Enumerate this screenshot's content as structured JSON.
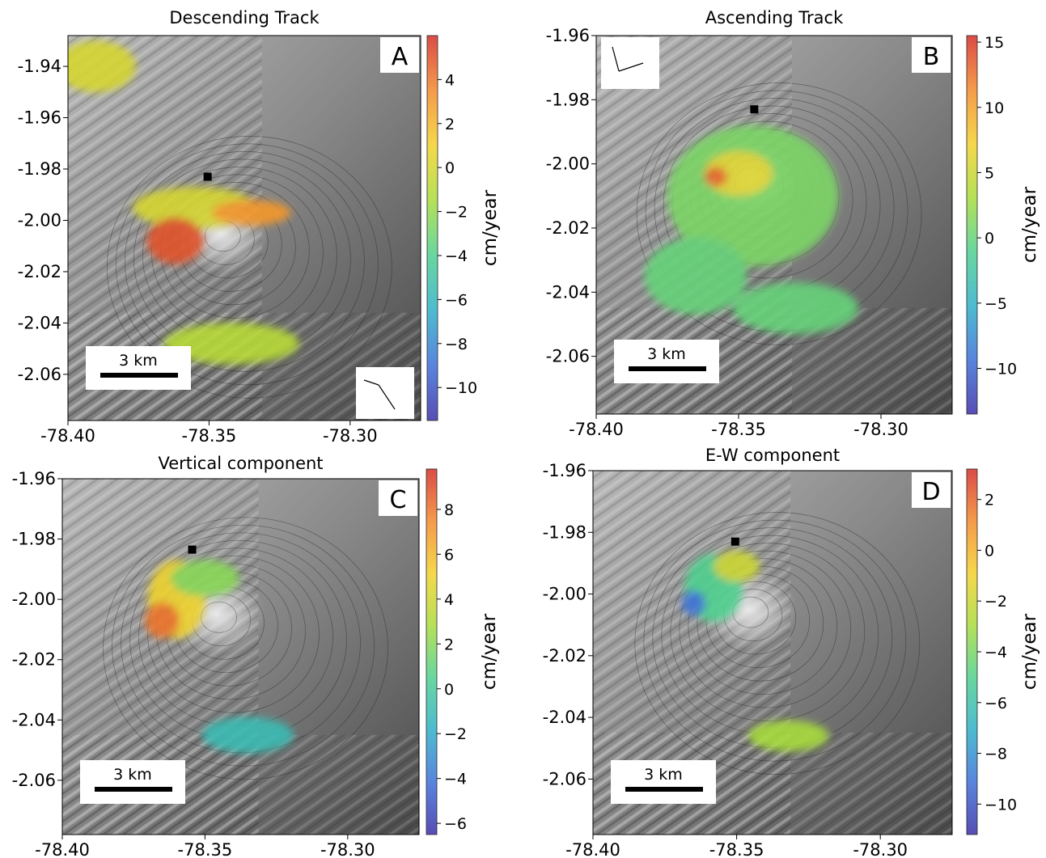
{
  "colorbar_unit": "cm/year",
  "scalebar_label": "3 km",
  "colormap": [
    "#3b2fa8",
    "#3d6fd8",
    "#2fb0c8",
    "#4fd090",
    "#a8dc3c",
    "#f4d22c",
    "#f48a2c",
    "#d42e28"
  ],
  "chart_data": [
    {
      "type": "heatmap",
      "panel_letter": "A",
      "title": "Descending Track",
      "xlim": [
        -78.4,
        -78.275
      ],
      "ylim": [
        -2.078,
        -1.928
      ],
      "xticks": [
        -78.4,
        -78.35,
        -78.3
      ],
      "xtick_labels": [
        "-78.40",
        "-78.35",
        "-78.30"
      ],
      "yticks": [
        -1.94,
        -1.96,
        -1.98,
        -2.0,
        -2.02,
        -2.04,
        -2.06
      ],
      "ytick_labels": [
        "-1.94",
        "-1.96",
        "-1.98",
        "-2.00",
        "-2.02",
        "-2.04",
        "-2.06"
      ],
      "colorbar": {
        "range": [
          -11.5,
          6
        ],
        "ticks": [
          4,
          2,
          0,
          -2,
          -4,
          -6,
          -8,
          -10
        ],
        "tick_labels": [
          "4",
          "2",
          "0",
          "−2",
          "−4",
          "−6",
          "−8",
          "−10"
        ],
        "label": "cm/year"
      },
      "marker": {
        "lon": -78.3505,
        "lat": -1.983
      },
      "arrows": "bottom-right",
      "deformation_patches": [
        {
          "lon": -78.355,
          "lat": -1.995,
          "rlon": 0.022,
          "rlat": 0.008,
          "value": 0
        },
        {
          "lon": -78.362,
          "lat": -2.008,
          "rlon": 0.01,
          "rlat": 0.009,
          "value": 5
        },
        {
          "lon": -78.335,
          "lat": -1.997,
          "rlon": 0.014,
          "rlat": 0.005,
          "value": 3
        },
        {
          "lon": -78.342,
          "lat": -2.048,
          "rlon": 0.024,
          "rlat": 0.008,
          "value": -1
        },
        {
          "lon": -78.39,
          "lat": -1.94,
          "rlon": 0.014,
          "rlat": 0.01,
          "value": 0
        }
      ]
    },
    {
      "type": "heatmap",
      "panel_letter": "B",
      "title": "Ascending Track",
      "xlim": [
        -78.4,
        -78.275
      ],
      "ylim": [
        -2.078,
        -1.96
      ],
      "xticks": [
        -78.4,
        -78.35,
        -78.3
      ],
      "xtick_labels": [
        "-78.40",
        "-78.35",
        "-78.30"
      ],
      "yticks": [
        -1.96,
        -1.98,
        -2.0,
        -2.02,
        -2.04,
        -2.06
      ],
      "ytick_labels": [
        "-1.96",
        "-1.98",
        "-2.00",
        "-2.02",
        "-2.04",
        "-2.06"
      ],
      "colorbar": {
        "range": [
          -13.5,
          15.5
        ],
        "ticks": [
          15,
          10,
          5,
          0,
          -5,
          -10
        ],
        "tick_labels": [
          "15",
          "10",
          "5",
          "0",
          "−5",
          "−10"
        ],
        "label": "cm/year"
      },
      "marker": {
        "lon": -78.3445,
        "lat": -1.983
      },
      "arrows": "top-left",
      "deformation_patches": [
        {
          "lon": -78.345,
          "lat": -2.01,
          "rlon": 0.03,
          "rlat": 0.022,
          "value": 1
        },
        {
          "lon": -78.35,
          "lat": -2.003,
          "rlon": 0.012,
          "rlat": 0.007,
          "value": 6
        },
        {
          "lon": -78.358,
          "lat": -2.004,
          "rlon": 0.004,
          "rlat": 0.003,
          "value": 13
        },
        {
          "lon": -78.33,
          "lat": -2.045,
          "rlon": 0.022,
          "rlat": 0.008,
          "value": 0
        },
        {
          "lon": -78.365,
          "lat": -2.035,
          "rlon": 0.018,
          "rlat": 0.012,
          "value": 0
        }
      ]
    },
    {
      "type": "heatmap",
      "panel_letter": "C",
      "title": "Vertical component",
      "xlim": [
        -78.4,
        -78.275
      ],
      "ylim": [
        -2.078,
        -1.96
      ],
      "xticks": [
        -78.4,
        -78.35,
        -78.3
      ],
      "xtick_labels": [
        "-78.40",
        "-78.35",
        "-78.30"
      ],
      "yticks": [
        -1.96,
        -1.98,
        -2.0,
        -2.02,
        -2.04,
        -2.06
      ],
      "ytick_labels": [
        "-1.96",
        "-1.98",
        "-2.00",
        "-2.02",
        "-2.04",
        "-2.06"
      ],
      "colorbar": {
        "range": [
          -6.5,
          9.8
        ],
        "ticks": [
          8,
          6,
          4,
          2,
          0,
          -2,
          -4,
          -6
        ],
        "tick_labels": [
          "8",
          "6",
          "4",
          "2",
          "0",
          "−2",
          "−4",
          "−6"
        ],
        "label": "cm/year"
      },
      "marker": {
        "lon": -78.3545,
        "lat": -1.9835
      },
      "arrows": "none",
      "deformation_patches": [
        {
          "lon": -78.36,
          "lat": -2.0,
          "rlon": 0.01,
          "rlat": 0.013,
          "value": 5
        },
        {
          "lon": -78.35,
          "lat": -1.993,
          "rlon": 0.012,
          "rlat": 0.006,
          "value": 2
        },
        {
          "lon": -78.365,
          "lat": -2.007,
          "rlon": 0.006,
          "rlat": 0.006,
          "value": 8
        },
        {
          "lon": -78.335,
          "lat": -2.045,
          "rlon": 0.016,
          "rlat": 0.006,
          "value": -1
        }
      ]
    },
    {
      "type": "heatmap",
      "panel_letter": "D",
      "title": "E-W component",
      "xlim": [
        -78.4,
        -78.275
      ],
      "ylim": [
        -2.078,
        -1.96
      ],
      "xticks": [
        -78.4,
        -78.35,
        -78.3
      ],
      "xtick_labels": [
        "-78.40",
        "-78.35",
        "-78.30"
      ],
      "yticks": [
        -1.96,
        -1.98,
        -2.0,
        -2.02,
        -2.04,
        -2.06
      ],
      "ytick_labels": [
        "-1.96",
        "-1.98",
        "-2.00",
        "-2.02",
        "-2.04",
        "-2.06"
      ],
      "colorbar": {
        "range": [
          -11.2,
          3.2
        ],
        "ticks": [
          2,
          0,
          -2,
          -4,
          -6,
          -8,
          -10
        ],
        "tick_labels": [
          "2",
          "0",
          "−2",
          "−4",
          "−6",
          "−8",
          "−10"
        ],
        "label": "cm/year"
      },
      "marker": {
        "lon": -78.3505,
        "lat": -1.983
      },
      "arrows": "none",
      "deformation_patches": [
        {
          "lon": -78.358,
          "lat": -1.998,
          "rlon": 0.01,
          "rlat": 0.011,
          "value": -5
        },
        {
          "lon": -78.35,
          "lat": -1.991,
          "rlon": 0.008,
          "rlat": 0.005,
          "value": -2
        },
        {
          "lon": -78.365,
          "lat": -2.003,
          "rlon": 0.004,
          "rlat": 0.004,
          "value": -9
        },
        {
          "lon": -78.332,
          "lat": -2.046,
          "rlon": 0.014,
          "rlat": 0.005,
          "value": -3
        }
      ]
    }
  ]
}
